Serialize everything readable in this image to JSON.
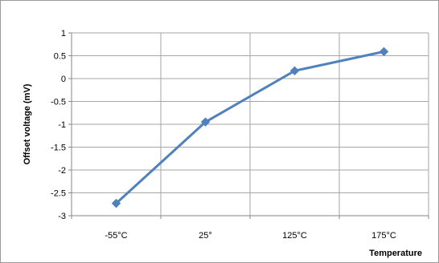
{
  "chart_data": {
    "type": "line",
    "title": "",
    "xlabel": "Temperature",
    "ylabel": "Offset voltage  (mV)",
    "categories": [
      "-55°C",
      "25°",
      "125°C",
      "175°C"
    ],
    "series": [
      {
        "values": [
          -2.73,
          -0.95,
          0.17,
          0.59
        ]
      }
    ],
    "ylim": [
      -3,
      1
    ],
    "yticks": [
      1,
      0.5,
      0,
      -0.5,
      -1,
      -1.5,
      -2,
      -2.5,
      -3
    ],
    "ytick_labels": [
      "1",
      "0.5",
      "0",
      "-0.5",
      "-1",
      "-1.5",
      "-2",
      "-2.5",
      "-3"
    ],
    "grid": true,
    "legend": "none",
    "colors": {
      "line": "#4f81bd",
      "marker": "#4f81bd",
      "grid": "#a6a6a6",
      "axis": "#868686"
    }
  }
}
